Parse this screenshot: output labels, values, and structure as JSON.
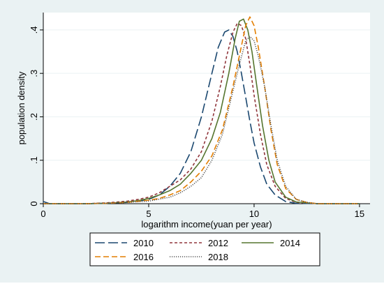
{
  "chart_data": {
    "type": "line",
    "title": "",
    "xlabel": "logarithm income(yuan per year)",
    "ylabel": "population density",
    "xlim": [
      0,
      15.5
    ],
    "ylim": [
      0,
      0.44
    ],
    "x_ticks": [
      0,
      5,
      10,
      15
    ],
    "x_tick_labels": [
      "0",
      "5",
      "10",
      "15"
    ],
    "y_ticks": [
      0,
      0.1,
      0.2,
      0.3,
      0.4
    ],
    "y_tick_labels": [
      "0",
      ".1",
      ".2",
      ".3",
      ".4"
    ],
    "grid": "horizontal",
    "legend_position": "bottom",
    "series": [
      {
        "name": "2010",
        "color": "#1a476f",
        "dash": "long-dash",
        "x": [
          0.0,
          0.3,
          1.0,
          2.0,
          3.0,
          4.0,
          4.5,
          5.0,
          5.5,
          6.0,
          6.5,
          7.0,
          7.5,
          8.0,
          8.3,
          8.6,
          8.8,
          9.0,
          9.2,
          9.4,
          9.6,
          9.8,
          10.0,
          10.3,
          10.6,
          11.0,
          11.5,
          12.0,
          13.0,
          15.0
        ],
        "y": [
          0.005,
          0.0,
          0.0,
          0.0,
          0.001,
          0.003,
          0.006,
          0.01,
          0.02,
          0.04,
          0.07,
          0.12,
          0.2,
          0.3,
          0.36,
          0.395,
          0.4,
          0.385,
          0.35,
          0.3,
          0.245,
          0.19,
          0.14,
          0.085,
          0.045,
          0.02,
          0.005,
          0.001,
          0.0,
          0.0
        ]
      },
      {
        "name": "2012",
        "color": "#90353b",
        "dash": "short-dash",
        "x": [
          0.0,
          1.0,
          2.0,
          3.0,
          4.0,
          4.5,
          5.0,
          5.5,
          6.0,
          6.5,
          7.0,
          7.5,
          8.0,
          8.4,
          8.7,
          9.0,
          9.2,
          9.4,
          9.6,
          9.8,
          10.0,
          10.3,
          10.6,
          11.0,
          11.5,
          12.0,
          13.0,
          15.0
        ],
        "y": [
          0.0,
          0.0,
          0.0,
          0.002,
          0.006,
          0.01,
          0.015,
          0.025,
          0.04,
          0.055,
          0.08,
          0.12,
          0.19,
          0.27,
          0.34,
          0.395,
          0.415,
          0.41,
          0.38,
          0.32,
          0.25,
          0.16,
          0.09,
          0.04,
          0.012,
          0.003,
          0.0,
          0.0
        ]
      },
      {
        "name": "2014",
        "color": "#55752f",
        "dash": "solid",
        "x": [
          0.0,
          1.0,
          2.0,
          3.0,
          4.0,
          4.5,
          5.0,
          5.5,
          6.0,
          6.5,
          7.0,
          7.5,
          8.0,
          8.4,
          8.8,
          9.1,
          9.3,
          9.5,
          9.7,
          9.9,
          10.1,
          10.4,
          10.7,
          11.0,
          11.5,
          12.0,
          13.0,
          15.0
        ],
        "y": [
          0.0,
          0.0,
          0.0,
          0.001,
          0.004,
          0.007,
          0.012,
          0.02,
          0.03,
          0.045,
          0.07,
          0.1,
          0.15,
          0.21,
          0.3,
          0.38,
          0.42,
          0.425,
          0.4,
          0.35,
          0.28,
          0.18,
          0.1,
          0.05,
          0.015,
          0.004,
          0.0,
          0.0
        ]
      },
      {
        "name": "2016",
        "color": "#e37e00",
        "dash": "medium-dash",
        "x": [
          0.0,
          1.0,
          2.0,
          3.0,
          4.0,
          5.0,
          5.5,
          6.0,
          6.5,
          7.0,
          7.5,
          8.0,
          8.5,
          9.0,
          9.3,
          9.6,
          9.8,
          10.0,
          10.2,
          10.5,
          10.8,
          11.1,
          11.5,
          12.0,
          12.5,
          13.0,
          15.0
        ],
        "y": [
          0.0,
          0.0,
          0.0,
          0.001,
          0.003,
          0.008,
          0.012,
          0.02,
          0.03,
          0.05,
          0.075,
          0.11,
          0.17,
          0.27,
          0.34,
          0.41,
          0.43,
          0.41,
          0.36,
          0.27,
          0.17,
          0.09,
          0.035,
          0.01,
          0.003,
          0.0,
          0.0
        ]
      },
      {
        "name": "2018",
        "color": "#555555",
        "dash": "dotted",
        "x": [
          0.0,
          1.0,
          2.0,
          3.0,
          4.0,
          5.0,
          6.0,
          6.5,
          7.0,
          7.5,
          8.0,
          8.5,
          9.0,
          9.3,
          9.6,
          9.8,
          10.0,
          10.2,
          10.5,
          10.8,
          11.1,
          11.5,
          12.0,
          12.5,
          13.0,
          15.0
        ],
        "y": [
          0.0,
          0.0,
          0.0,
          0.001,
          0.003,
          0.006,
          0.015,
          0.025,
          0.04,
          0.06,
          0.1,
          0.16,
          0.26,
          0.32,
          0.375,
          0.385,
          0.375,
          0.34,
          0.27,
          0.18,
          0.1,
          0.04,
          0.01,
          0.003,
          0.0,
          0.0
        ]
      }
    ]
  }
}
